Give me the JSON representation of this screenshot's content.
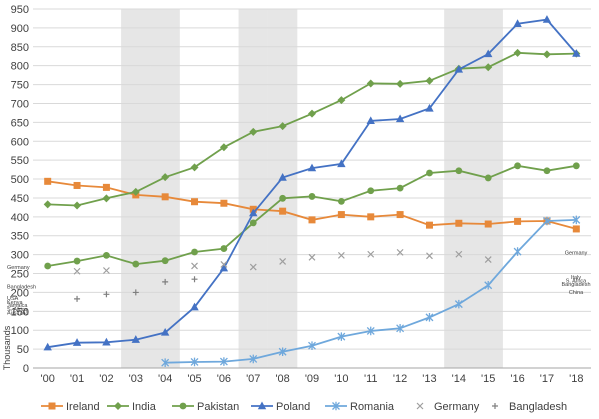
{
  "chart_data": {
    "type": "line",
    "title": "",
    "xlabel": "",
    "ylabel": "Thousands",
    "ylim": [
      0,
      950
    ],
    "y_tick_step": 50,
    "grid": "horizontal",
    "legend_position": "bottom",
    "categories": [
      "'00",
      "'01",
      "'02",
      "'03",
      "'04",
      "'05",
      "'06",
      "'07",
      "'08",
      "'09",
      "'10",
      "'11",
      "'12",
      "'13",
      "'14",
      "'15",
      "'16",
      "'17",
      "'18"
    ],
    "shaded_categories": [
      "'03",
      "'04",
      "'07",
      "'08",
      "'14",
      "'15"
    ],
    "series": [
      {
        "name": "Ireland",
        "color": "#E7893A",
        "marker": "square",
        "values": [
          494,
          483,
          478,
          458,
          453,
          440,
          436,
          420,
          415,
          392,
          406,
          400,
          406,
          378,
          383,
          381,
          388,
          389,
          368
        ]
      },
      {
        "name": "India",
        "color": "#70A04C",
        "marker": "diamond",
        "values": [
          433,
          430,
          449,
          466,
          505,
          531,
          584,
          625,
          640,
          673,
          709,
          753,
          752,
          760,
          792,
          796,
          834,
          830,
          832
        ]
      },
      {
        "name": "Pakistan",
        "color": "#70A04C",
        "marker": "circle",
        "values": [
          270,
          283,
          298,
          275,
          284,
          307,
          316,
          384,
          449,
          454,
          441,
          469,
          476,
          516,
          522,
          503,
          535,
          522,
          535
        ]
      },
      {
        "name": "Poland",
        "color": "#4472C4",
        "marker": "triangle",
        "values": [
          55,
          67,
          68,
          75,
          94,
          161,
          264,
          410,
          504,
          529,
          540,
          654,
          659,
          687,
          790,
          831,
          911,
          922,
          832
        ]
      },
      {
        "name": "Romania",
        "color": "#6FA8DC",
        "marker": "star",
        "values": [
          null,
          null,
          null,
          null,
          14,
          16,
          17,
          24,
          43,
          59,
          83,
          98,
          105,
          134,
          169,
          219,
          308,
          389,
          392
        ]
      },
      {
        "name": "Germany",
        "color": "#9E9E9E",
        "marker": "x",
        "values": [
          null,
          256,
          258,
          null,
          null,
          270,
          274,
          267,
          282,
          293,
          298,
          301,
          306,
          297,
          301,
          287,
          null,
          null,
          null
        ]
      },
      {
        "name": "Bangladesh",
        "color": "#7F7F7F",
        "marker": "plus",
        "values": [
          null,
          183,
          195,
          200,
          228,
          235,
          null,
          null,
          null,
          null,
          null,
          null,
          null,
          null,
          null,
          null,
          null,
          null,
          null
        ]
      }
    ],
    "annotations_left": [
      {
        "text": "Germany",
        "value": 262
      },
      {
        "text": "Bangladesh",
        "value": 210
      },
      {
        "text": "USA",
        "value": 180
      },
      {
        "text": "Kenya",
        "value": 170
      },
      {
        "text": "Jamaica",
        "value": 161
      },
      {
        "text": "S. Africa",
        "value": 151
      },
      {
        "text": "Australia",
        "value": 142
      }
    ],
    "annotations_right": [
      {
        "text": "Germany",
        "value": 300
      },
      {
        "text": "Italy",
        "value": 236
      },
      {
        "text": "S. Africa",
        "value": 226
      },
      {
        "text": "Bangladesh",
        "value": 217
      },
      {
        "text": "China",
        "value": 196
      }
    ]
  }
}
